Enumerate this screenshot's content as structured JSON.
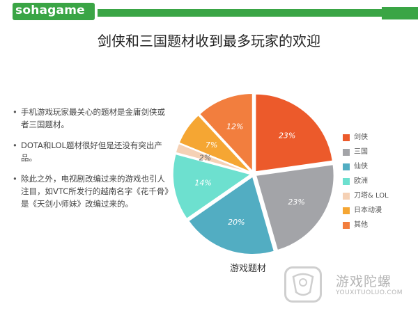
{
  "header": {
    "logo_text": "sohagame"
  },
  "title": "剑侠和三国题材收到最多玩家的欢迎",
  "bullets": [
    "手机游戏玩家最关心的题材是金庸剑侠或者三国题材。",
    "DOTA和LOL题材很好但是还没有突出产品。",
    "除此之外，电视剧改编过来的游戏也引人注目，如VTC所发行的越南名字《花千骨》是《天剑小师妹》改编过来的。"
  ],
  "chart_data": {
    "type": "pie",
    "xlabel": "游戏题材",
    "categories": [
      "剑侠",
      "三国",
      "仙侠",
      "欧洲",
      "刀塔& LOL",
      "日本动漫",
      "其他"
    ],
    "values": [
      23,
      23,
      20,
      14,
      2,
      7,
      12
    ],
    "labels": [
      "23%",
      "23%",
      "20%",
      "14%",
      "2%",
      "7%",
      "12%"
    ],
    "colors": [
      "#ec5a2b",
      "#a3a4a8",
      "#52adc2",
      "#6de0cf",
      "#f5d1b5",
      "#f5a633",
      "#f27e3e"
    ]
  },
  "watermark": {
    "title": "游戏陀螺",
    "subtitle": "YOUXITUOLUO.COM"
  }
}
